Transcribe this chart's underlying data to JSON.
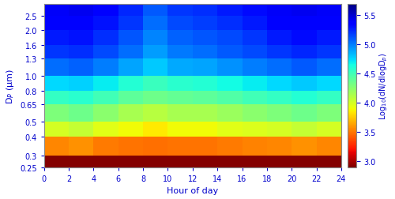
{
  "title": "",
  "xlabel": "Hour of day",
  "ylabel": "D$_P$ (μm)",
  "colorbar_label": "Log$_{10}$(dN/dlogD$_p$)",
  "clim": [
    2.9,
    5.7
  ],
  "colorbar_ticks": [
    3.0,
    3.5,
    4.0,
    4.5,
    5.0,
    5.5
  ],
  "dp_edges": [
    0.25,
    0.3,
    0.4,
    0.5,
    0.65,
    0.8,
    1.0,
    1.3,
    1.6,
    2.0,
    2.5,
    3.0
  ],
  "hour_edges": [
    0,
    2,
    4,
    6,
    8,
    10,
    12,
    14,
    16,
    18,
    20,
    22,
    24
  ],
  "yticks": [
    0.25,
    0.3,
    0.4,
    0.5,
    0.65,
    0.8,
    1.0,
    1.3,
    1.6,
    2.0,
    2.5
  ],
  "xticks": [
    0,
    2,
    4,
    6,
    8,
    10,
    12,
    14,
    16,
    18,
    20,
    22,
    24
  ],
  "Z": [
    [
      2.92,
      2.92,
      2.92,
      2.92,
      2.92,
      2.92,
      2.92,
      2.92,
      2.92,
      2.92,
      2.92,
      2.92
    ],
    [
      3.55,
      3.58,
      3.52,
      3.5,
      3.48,
      3.5,
      3.5,
      3.52,
      3.54,
      3.55,
      3.58,
      3.55
    ],
    [
      4.0,
      4.05,
      3.95,
      3.9,
      3.85,
      3.9,
      3.9,
      3.95,
      3.98,
      4.0,
      4.05,
      4.0
    ],
    [
      4.3,
      4.35,
      4.25,
      4.15,
      4.1,
      4.15,
      4.15,
      4.2,
      4.25,
      4.3,
      4.35,
      4.3
    ],
    [
      4.55,
      4.58,
      4.5,
      4.4,
      4.35,
      4.38,
      4.4,
      4.45,
      4.5,
      4.55,
      4.6,
      4.55
    ],
    [
      4.75,
      4.78,
      4.7,
      4.6,
      4.52,
      4.58,
      4.6,
      4.65,
      4.7,
      4.75,
      4.8,
      4.75
    ],
    [
      5.05,
      5.08,
      5.0,
      4.9,
      4.8,
      4.88,
      4.9,
      4.95,
      5.0,
      5.05,
      5.1,
      5.05
    ],
    [
      5.2,
      5.22,
      5.15,
      5.05,
      4.92,
      5.02,
      5.05,
      5.1,
      5.15,
      5.2,
      5.25,
      5.2
    ],
    [
      5.28,
      5.3,
      5.22,
      5.12,
      4.98,
      5.08,
      5.12,
      5.15,
      5.2,
      5.28,
      5.32,
      5.28
    ],
    [
      5.35,
      5.38,
      5.3,
      5.2,
      5.05,
      5.15,
      5.18,
      5.22,
      5.28,
      5.35,
      5.38,
      5.35
    ],
    [
      5.4,
      5.42,
      5.35,
      5.25,
      5.1,
      5.2,
      5.22,
      5.28,
      5.32,
      5.4,
      5.42,
      5.4
    ]
  ],
  "label_color": "#0000cc",
  "tick_color": "#0000cc",
  "axis_color": "#888888"
}
